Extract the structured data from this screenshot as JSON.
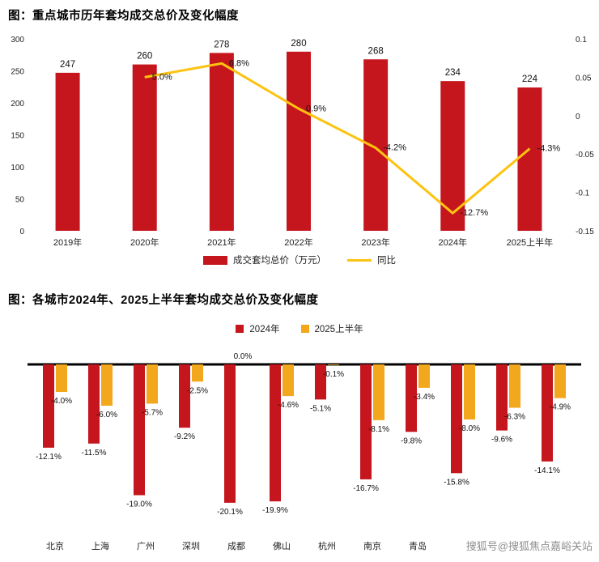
{
  "page": {
    "watermark": "搜狐号@搜狐焦点嘉峪关站"
  },
  "colors": {
    "red": "#c5161d",
    "yellow": "#fcc310",
    "orange": "#f2a71d",
    "tick": "#222222",
    "label": "#111111"
  },
  "chart1": {
    "title": "图：重点城市历年套均成交总价及变化幅度",
    "legend": {
      "bar_label": "成交套均总价（万元）",
      "line_label": "同比"
    }
  },
  "chart2": {
    "title": "图：各城市2024年、2025上半年套均成交总价及变化幅度",
    "legend": {
      "s1": "2024年",
      "s2": "2025上半年"
    }
  },
  "chart_data": [
    {
      "type": "bar",
      "title": "重点城市历年套均成交总价及变化幅度",
      "categories": [
        "2019年",
        "2020年",
        "2021年",
        "2022年",
        "2023年",
        "2024年",
        "2025上半年"
      ],
      "series": [
        {
          "name": "成交套均总价（万元）",
          "type": "bar",
          "axis": "left",
          "values": [
            247,
            260,
            278,
            280,
            268,
            234,
            224
          ],
          "labels": [
            "247",
            "260",
            "278",
            "280",
            "268",
            "234",
            "224"
          ]
        },
        {
          "name": "同比",
          "type": "line",
          "axis": "right",
          "values": [
            null,
            0.05,
            0.068,
            0.009,
            -0.042,
            -0.127,
            -0.043
          ],
          "labels": [
            "",
            "5.0%",
            "6.8%",
            "0.9%",
            "-4.2%",
            "-12.7%",
            "-4.3%"
          ]
        }
      ],
      "left_axis": {
        "min": 0,
        "max": 300,
        "step": 50,
        "ticks": [
          "0",
          "50",
          "100",
          "150",
          "200",
          "250",
          "300"
        ]
      },
      "right_axis": {
        "min": -0.15,
        "max": 0.1,
        "step": 0.05,
        "ticks": [
          "-0.15",
          "-0.1",
          "-0.05",
          "0",
          "0.05",
          "0.1"
        ]
      },
      "grid": false,
      "legend_position": "bottom"
    },
    {
      "type": "bar",
      "title": "各城市2024年、2025上半年套均成交总价及变化幅度",
      "categories": [
        "北京",
        "上海",
        "广州",
        "深圳",
        "成都",
        "佛山",
        "杭州",
        "南京",
        "青岛",
        "",
        "",
        ""
      ],
      "series": [
        {
          "name": "2024年",
          "values": [
            -12.1,
            -11.5,
            -19.0,
            -9.2,
            -20.1,
            -19.9,
            -5.1,
            -16.7,
            -9.8,
            -15.8,
            -9.6,
            -14.1
          ],
          "labels": [
            "-12.1%",
            "-11.5%",
            "-19.0%",
            "-9.2%",
            "-20.1%",
            "-19.9%",
            "-5.1%",
            "-16.7%",
            "-9.8%",
            "-15.8%",
            "-9.6%",
            "-14.1%"
          ]
        },
        {
          "name": "2025上半年",
          "values": [
            -4.0,
            -6.0,
            -5.7,
            -2.5,
            0.0,
            -4.6,
            -0.1,
            -8.1,
            -3.4,
            -8.0,
            -6.3,
            -4.9
          ],
          "labels": [
            "-4.0%",
            "-6.0%",
            "-5.7%",
            "-2.5%",
            "0.0%",
            "-4.6%",
            "-0.1%",
            "-8.1%",
            "-3.4%",
            "-8.0%",
            "-6.3%",
            "-4.9%"
          ]
        }
      ],
      "grid": false,
      "legend_position": "top"
    }
  ]
}
